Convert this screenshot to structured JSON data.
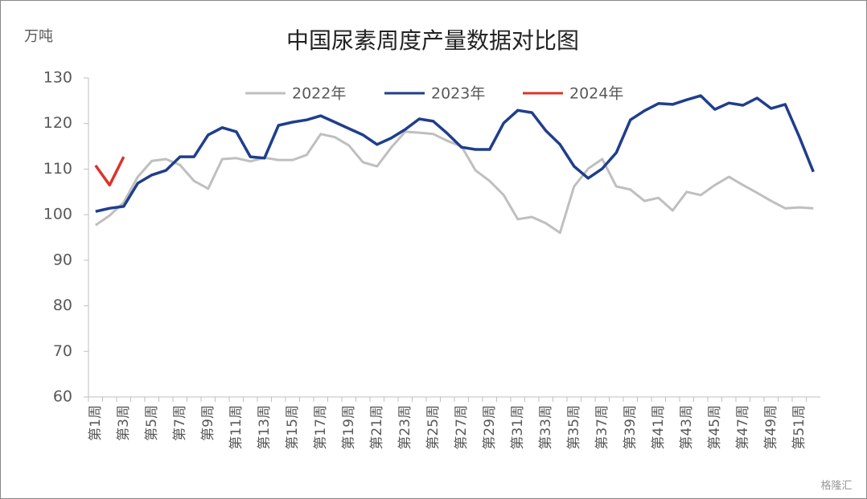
{
  "chart_data": {
    "type": "line",
    "title": "中国尿素周度产量数据对比图",
    "y_label": "万吨",
    "watermark": "格隆汇",
    "categories": [
      "第1周",
      null,
      "第3周",
      null,
      "第5周",
      null,
      "第7周",
      null,
      "第9周",
      null,
      "第11周",
      null,
      "第13周",
      null,
      "第15周",
      null,
      "第17周",
      null,
      "第19周",
      null,
      "第21周",
      null,
      "第23周",
      null,
      "第25周",
      null,
      "第27周",
      null,
      "第29周",
      null,
      "第31周",
      null,
      "第33周",
      null,
      "第35周",
      null,
      "第37周",
      null,
      "第39周",
      null,
      "第41周",
      null,
      "第43周",
      null,
      "第45周",
      null,
      "第47周",
      null,
      "第49周",
      null,
      "第51周",
      null
    ],
    "series": [
      {
        "name": "2022年",
        "color": "#bfbfbf",
        "values": [
          97.7,
          99.8,
          102.7,
          108.3,
          111.8,
          112.2,
          110.9,
          107.4,
          105.7,
          112.2,
          112.4,
          111.7,
          112.5,
          112.0,
          112.0,
          113.1,
          117.7,
          117.0,
          115.2,
          111.5,
          110.6,
          114.7,
          118.2,
          118.0,
          117.7,
          116.2,
          115.0,
          109.7,
          107.4,
          104.3,
          99.0,
          99.5,
          98.1,
          96.0,
          106.2,
          110.1,
          112.2,
          106.2,
          105.5,
          103.0,
          103.7,
          100.9,
          105.0,
          104.3,
          106.5,
          108.3,
          106.5,
          104.8,
          103.0,
          101.4,
          101.6,
          101.4
        ]
      },
      {
        "name": "2023年",
        "color": "#1f3e8c",
        "values": [
          100.7,
          101.4,
          101.8,
          106.9,
          108.7,
          109.7,
          112.7,
          112.7,
          117.5,
          119.1,
          118.2,
          112.7,
          112.4,
          119.6,
          120.3,
          120.8,
          121.7,
          120.3,
          118.9,
          117.5,
          115.4,
          116.8,
          118.7,
          121.0,
          120.5,
          117.8,
          114.8,
          114.3,
          114.3,
          120.1,
          122.9,
          122.4,
          118.4,
          115.4,
          110.6,
          108.0,
          110.1,
          113.6,
          120.8,
          122.8,
          124.4,
          124.2,
          125.2,
          126.1,
          123.1,
          124.5,
          124.0,
          125.6,
          123.3,
          124.2,
          117.1,
          109.4
        ]
      },
      {
        "name": "2024年",
        "color": "#d9362b",
        "values": [
          110.8,
          106.5,
          112.7,
          null,
          null,
          null,
          null,
          null,
          null,
          null,
          null,
          null,
          null,
          null,
          null,
          null,
          null,
          null,
          null,
          null,
          null,
          null,
          null,
          null,
          null,
          null,
          null,
          null,
          null,
          null,
          null,
          null,
          null,
          null,
          null,
          null,
          null,
          null,
          null,
          null,
          null,
          null,
          null,
          null,
          null,
          null,
          null,
          null,
          null,
          null,
          null,
          null
        ]
      }
    ],
    "ylim": [
      60,
      130
    ],
    "yticks": [
      60,
      70,
      80,
      90,
      100,
      110,
      120,
      130
    ],
    "grid": false,
    "legend": "top"
  }
}
